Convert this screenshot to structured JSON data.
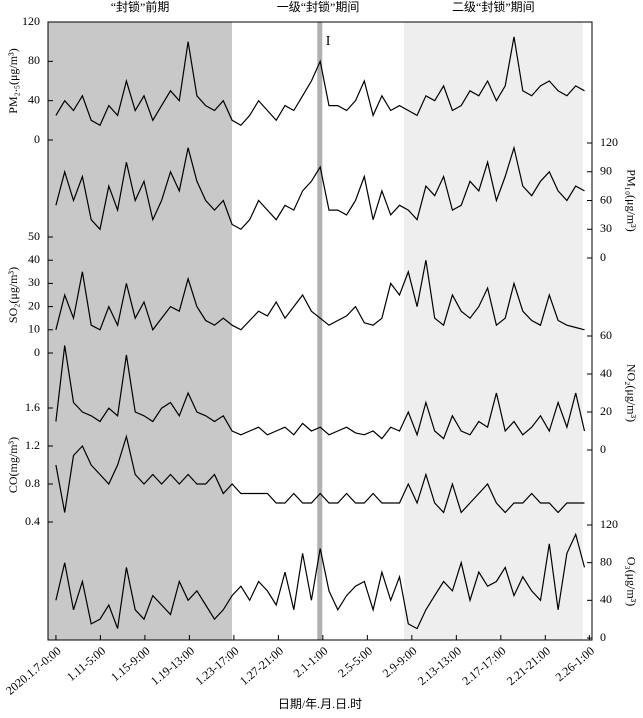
{
  "chart_data": {
    "type": "line",
    "xlabel": "日期/年.月.日.时",
    "xlim": [
      -18,
      1217
    ],
    "x": [
      0,
      20,
      40,
      60,
      80,
      100,
      120,
      140,
      160,
      180,
      200,
      220,
      240,
      260,
      280,
      300,
      320,
      340,
      360,
      380,
      400,
      420,
      440,
      460,
      480,
      500,
      520,
      540,
      560,
      580,
      600,
      620,
      640,
      660,
      680,
      700,
      720,
      740,
      760,
      780,
      800,
      820,
      840,
      860,
      880,
      900,
      920,
      940,
      960,
      980,
      1000,
      1020,
      1040,
      1060,
      1080,
      1100,
      1120,
      1140,
      1160,
      1180,
      1200
    ],
    "xticks": [
      {
        "value": 0,
        "label": "2020.1.7-0:00"
      },
      {
        "value": 101,
        "label": "1.11-5:00"
      },
      {
        "value": 202,
        "label": "1.15-9:00"
      },
      {
        "value": 303,
        "label": "1.19-13:00"
      },
      {
        "value": 404,
        "label": "1.23-17:00"
      },
      {
        "value": 505,
        "label": "1.27-21:00"
      },
      {
        "value": 606,
        "label": "2.1-1:00"
      },
      {
        "value": 707,
        "label": "2.5-5:00"
      },
      {
        "value": 808,
        "label": "2.9-9:00"
      },
      {
        "value": 909,
        "label": "2.13-13:00"
      },
      {
        "value": 1010,
        "label": "2.17-17:00"
      },
      {
        "value": 1111,
        "label": "2.21-21:00"
      },
      {
        "value": 1211,
        "label": "2.26-1:00"
      }
    ],
    "regions": [
      {
        "label": "“封锁”前期",
        "start": -18,
        "end": 400,
        "color": "#c8c8c8"
      },
      {
        "label": "一级“封锁”期间",
        "start": 400,
        "end": 790,
        "color": "#ffffff"
      },
      {
        "label": "二级“封锁”期间",
        "start": 790,
        "end": 1196,
        "color": "#eeeeee"
      }
    ],
    "marker": {
      "label": "I",
      "x": 599,
      "color": "#b0b0b0"
    },
    "series": [
      {
        "name": "PM₂.₅(μg/m³)",
        "axis": "left",
        "color": "#000000",
        "ylim": [
          0,
          120
        ],
        "yticks": [
          0,
          40,
          80,
          120
        ],
        "values": [
          25,
          40,
          30,
          45,
          20,
          15,
          35,
          25,
          60,
          30,
          45,
          20,
          35,
          50,
          40,
          100,
          45,
          35,
          30,
          40,
          20,
          15,
          25,
          40,
          30,
          20,
          35,
          30,
          45,
          60,
          80,
          35,
          35,
          30,
          40,
          60,
          25,
          45,
          30,
          35,
          30,
          25,
          45,
          40,
          55,
          30,
          35,
          50,
          45,
          60,
          40,
          55,
          105,
          50,
          45,
          55,
          60,
          50,
          45,
          55,
          50
        ]
      },
      {
        "name": "PM₁₀(μg/m³)",
        "axis": "right",
        "color": "#000000",
        "ylim": [
          0,
          120
        ],
        "yticks": [
          0,
          30,
          60,
          90,
          120
        ],
        "values": [
          55,
          90,
          60,
          85,
          40,
          30,
          75,
          50,
          100,
          60,
          80,
          40,
          60,
          90,
          70,
          115,
          80,
          60,
          50,
          60,
          35,
          30,
          40,
          60,
          50,
          40,
          55,
          50,
          70,
          80,
          95,
          50,
          50,
          45,
          60,
          85,
          40,
          70,
          45,
          55,
          50,
          40,
          75,
          65,
          85,
          50,
          55,
          80,
          70,
          100,
          60,
          85,
          115,
          75,
          65,
          80,
          90,
          70,
          60,
          75,
          70
        ]
      },
      {
        "name": "SO₂(μg/m³)",
        "axis": "left",
        "color": "#000000",
        "ylim": [
          0,
          50
        ],
        "yticks": [
          0,
          10,
          20,
          30,
          40,
          50
        ],
        "values": [
          10,
          25,
          15,
          35,
          12,
          10,
          20,
          12,
          30,
          15,
          22,
          10,
          15,
          20,
          18,
          32,
          20,
          14,
          12,
          15,
          12,
          10,
          14,
          18,
          16,
          22,
          15,
          20,
          25,
          18,
          15,
          12,
          14,
          16,
          20,
          13,
          12,
          15,
          30,
          25,
          35,
          20,
          40,
          15,
          12,
          25,
          18,
          15,
          20,
          28,
          12,
          15,
          30,
          18,
          14,
          12,
          25,
          14,
          12,
          11,
          10
        ]
      },
      {
        "name": "NO₂(μg/m³)",
        "axis": "right",
        "color": "#000000",
        "ylim": [
          0,
          60
        ],
        "yticks": [
          0,
          20,
          40,
          60
        ],
        "values": [
          15,
          55,
          25,
          20,
          18,
          15,
          22,
          18,
          50,
          20,
          18,
          15,
          22,
          25,
          18,
          30,
          20,
          18,
          15,
          18,
          10,
          8,
          10,
          12,
          8,
          10,
          12,
          8,
          14,
          10,
          12,
          8,
          10,
          12,
          9,
          8,
          10,
          6,
          12,
          10,
          20,
          8,
          25,
          10,
          6,
          18,
          10,
          8,
          15,
          12,
          30,
          10,
          15,
          8,
          12,
          18,
          10,
          25,
          12,
          30,
          10
        ]
      },
      {
        "name": "CO(mg/m³)",
        "axis": "left",
        "color": "#000000",
        "ylim": [
          0.4,
          1.6
        ],
        "yticks": [
          0.4,
          0.8,
          1.2,
          1.6
        ],
        "values": [
          1.0,
          0.5,
          1.1,
          1.2,
          1.0,
          0.9,
          0.8,
          1.0,
          1.3,
          0.9,
          0.8,
          0.9,
          0.8,
          0.9,
          0.8,
          0.9,
          0.8,
          0.8,
          0.9,
          0.7,
          0.8,
          0.7,
          0.7,
          0.7,
          0.7,
          0.6,
          0.6,
          0.7,
          0.6,
          0.6,
          0.7,
          0.6,
          0.6,
          0.7,
          0.6,
          0.6,
          0.7,
          0.6,
          0.6,
          0.6,
          0.8,
          0.6,
          0.9,
          0.6,
          0.5,
          0.8,
          0.5,
          0.6,
          0.7,
          0.8,
          0.6,
          0.5,
          0.6,
          0.6,
          0.7,
          0.6,
          0.6,
          0.5,
          0.6,
          0.6,
          0.6
        ]
      },
      {
        "name": "O₃(μg/m³)",
        "axis": "right",
        "color": "#000000",
        "ylim": [
          0,
          120
        ],
        "yticks": [
          0,
          40,
          80,
          120
        ],
        "values": [
          40,
          80,
          30,
          60,
          15,
          20,
          35,
          10,
          75,
          30,
          20,
          45,
          35,
          25,
          60,
          40,
          50,
          35,
          20,
          30,
          45,
          55,
          40,
          60,
          50,
          35,
          70,
          30,
          90,
          40,
          95,
          50,
          30,
          45,
          55,
          60,
          30,
          70,
          40,
          65,
          15,
          10,
          30,
          45,
          60,
          50,
          80,
          40,
          70,
          55,
          60,
          75,
          45,
          65,
          50,
          40,
          100,
          30,
          90,
          110,
          75
        ]
      }
    ]
  }
}
